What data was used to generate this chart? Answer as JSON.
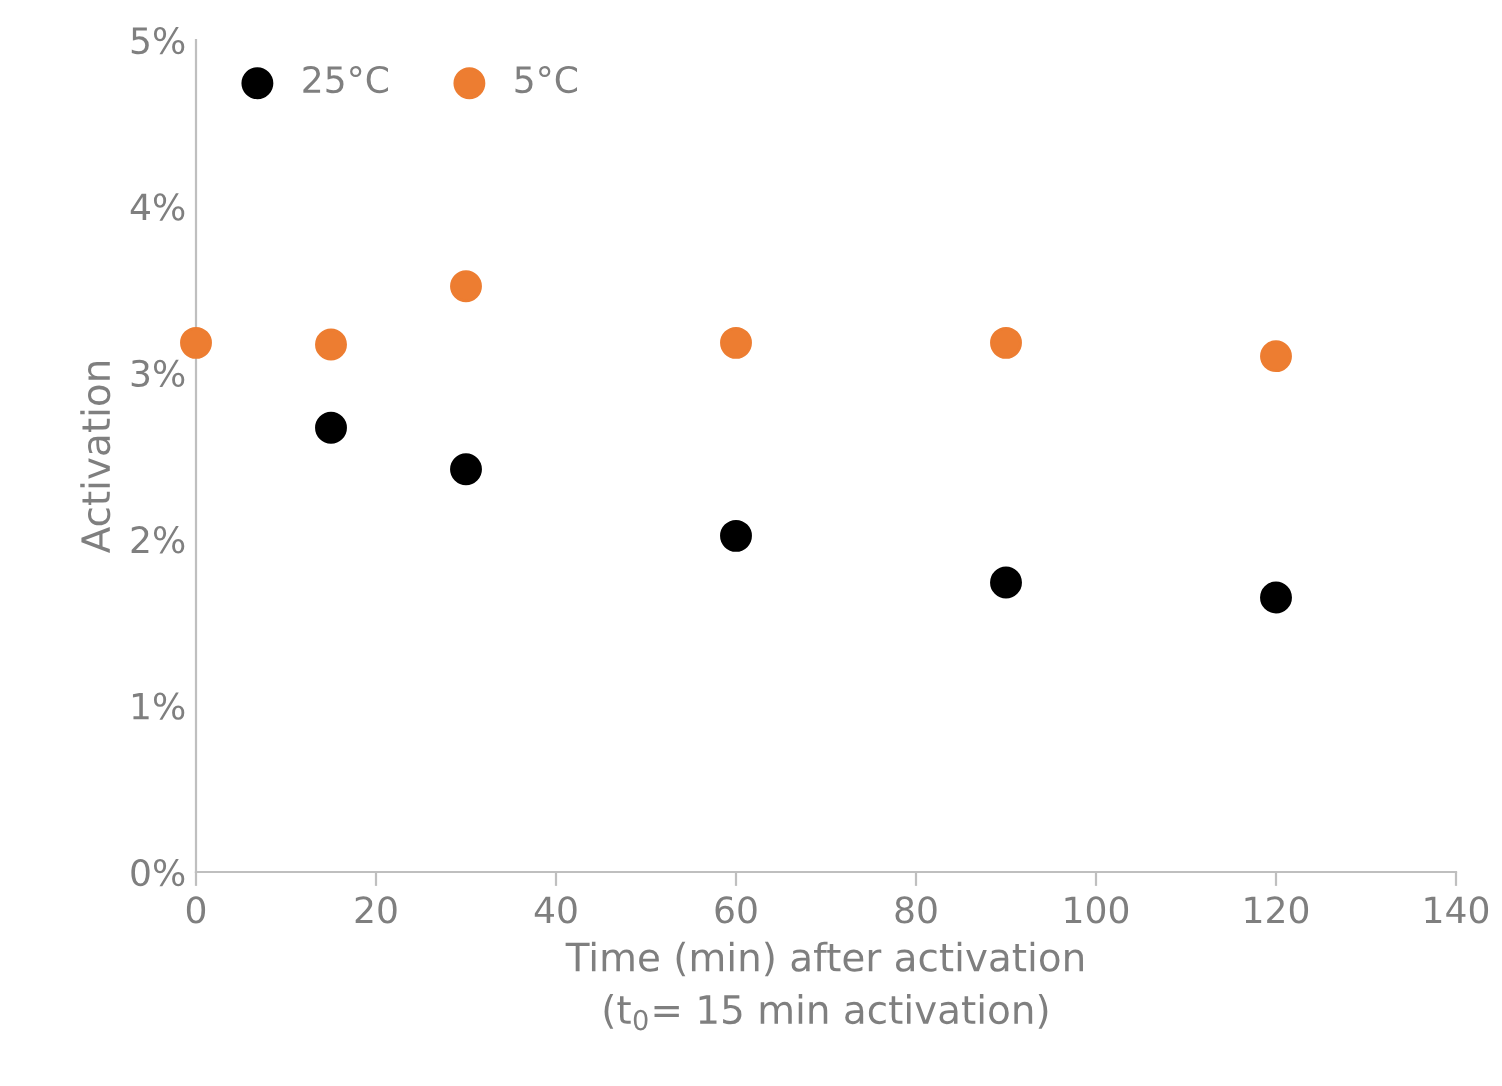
{
  "chart_data": {
    "type": "scatter",
    "xlabel": "Time (min) after activation\n(t$_{0}$= 15 min activation)",
    "ylabel": "Activation",
    "x": [
      0,
      15,
      30,
      60,
      90,
      120
    ],
    "series": [
      {
        "name": "25°C",
        "color": "#000000",
        "values": [
          null,
          2.67,
          2.42,
          2.02,
          1.74,
          1.65
        ]
      },
      {
        "name": "5°C",
        "color": "#ed7d31",
        "values": [
          3.18,
          3.17,
          3.52,
          3.18,
          3.18,
          3.1
        ]
      }
    ],
    "xlim": [
      0,
      140
    ],
    "xticks": [
      0,
      20,
      40,
      60,
      80,
      100,
      120,
      140
    ],
    "ylim": [
      0,
      5
    ],
    "yticks": [
      {
        "value": 0,
        "label": "0%"
      },
      {
        "value": 1,
        "label": "1%"
      },
      {
        "value": 2,
        "label": "2%"
      },
      {
        "value": 3,
        "label": "3%"
      },
      {
        "value": 4,
        "label": "4%"
      },
      {
        "value": 5,
        "label": "5%"
      }
    ],
    "grid": false,
    "legend": "top left",
    "marker": "circle"
  }
}
